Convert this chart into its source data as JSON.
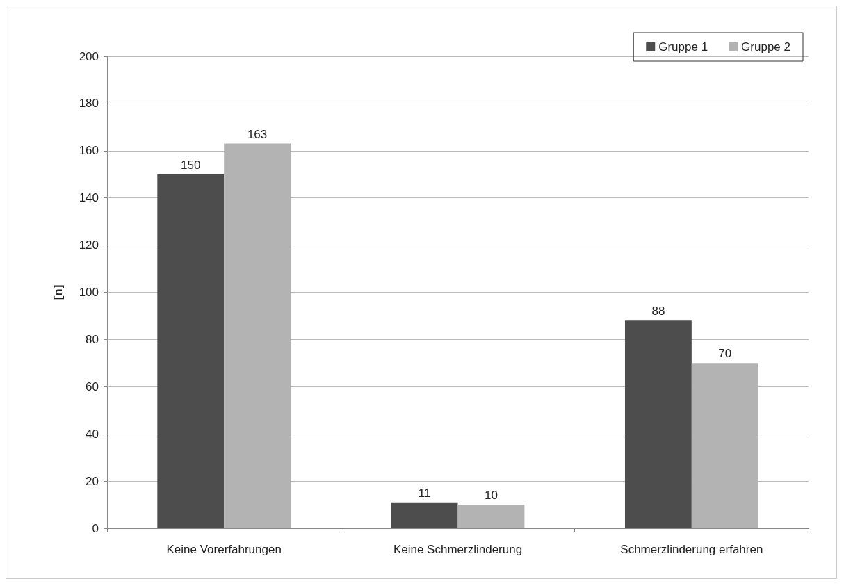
{
  "chart_data": {
    "type": "bar",
    "ylabel": "[n]",
    "categories": [
      "Keine Vorerfahrungen",
      "Keine Schmerzlinderung",
      "Schmerzlinderung erfahren"
    ],
    "series": [
      {
        "name": "Gruppe 1",
        "color": "#4d4d4d",
        "values": [
          150,
          11,
          88
        ]
      },
      {
        "name": "Gruppe 2",
        "color": "#b3b3b3",
        "values": [
          163,
          10,
          70
        ]
      }
    ],
    "ylim": [
      0,
      200
    ],
    "yticks": [
      0,
      20,
      40,
      60,
      80,
      100,
      120,
      140,
      160,
      180,
      200
    ],
    "grid": "y",
    "legend": "top right",
    "data_labels": true
  }
}
